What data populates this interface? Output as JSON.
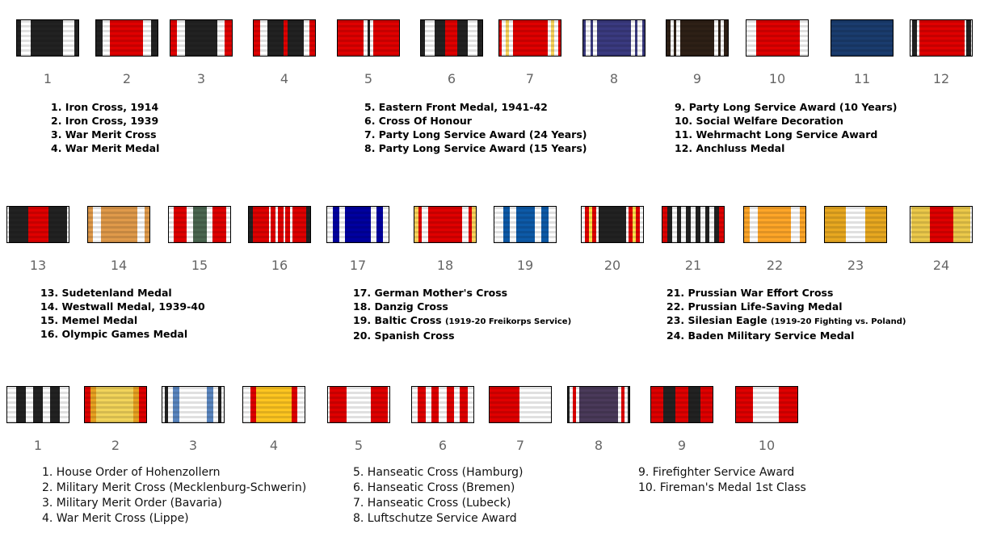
{
  "rows": [
    {
      "ribbons": [
        "1",
        "2",
        "3",
        "4",
        "5",
        "6",
        "7",
        "8",
        "9",
        "10",
        "11",
        "12"
      ],
      "label_groups": [
        [
          {
            "text": "1. Iron Cross, 1914"
          },
          {
            "text": "2. Iron Cross, 1939"
          },
          {
            "text": "3. War Merit Cross"
          },
          {
            "text": "4. War Merit Medal"
          }
        ],
        [
          {
            "text": "5. Eastern Front Medal, 1941-42"
          },
          {
            "text": "6. Cross Of Honour"
          },
          {
            "text": "7. Party Long Service Award (24 Years)"
          },
          {
            "text": "8. Party Long Service Award (15 Years)"
          }
        ],
        [
          {
            "text": "9. Party Long Service Award (10 Years)"
          },
          {
            "text": "10. Social Welfare Decoration"
          },
          {
            "text": "11. Wehrmacht Long Service Award"
          },
          {
            "text": "12. Anchluss Medal"
          }
        ]
      ]
    },
    {
      "ribbons": [
        "13",
        "14",
        "15",
        "16",
        "17",
        "18",
        "19",
        "20",
        "21",
        "22",
        "23",
        "24"
      ],
      "label_groups": [
        [
          {
            "text": "13. Sudetenland Medal"
          },
          {
            "text": "14. Westwall Medal, 1939-40"
          },
          {
            "text": "15. Memel Medal"
          },
          {
            "text": "16. Olympic Games Medal"
          }
        ],
        [
          {
            "text": "17. German Mother's Cross"
          },
          {
            "text": "18. Danzig Cross"
          },
          {
            "text": "19. Baltic Cross ",
            "sub": "(1919-20 Freikorps Service)"
          },
          {
            "text": "20. Spanish Cross"
          }
        ],
        [
          {
            "text": "21. Prussian War Effort Cross"
          },
          {
            "text": "22. Prussian Life-Saving Medal"
          },
          {
            "text": "23. Silesian Eagle ",
            "sub": "(1919-20 Fighting vs. Poland)"
          },
          {
            "text": "24. Baden Military Service Medal"
          }
        ]
      ]
    },
    {
      "ribbons": [
        "1",
        "2",
        "3",
        "4",
        "5",
        "6",
        "7",
        "8",
        "9",
        "10"
      ],
      "label_groups": [
        [
          {
            "text": "1. House Order of Hohenzollern"
          },
          {
            "text": "2. Military Merit Cross (Mecklenburg-Schwerin)"
          },
          {
            "text": "3. Military Merit Order (Bavaria)"
          },
          {
            "text": "4. War Merit Cross (Lippe)"
          }
        ],
        [
          {
            "text": "5. Hanseatic Cross (Hamburg)"
          },
          {
            "text": "6. Hanseatic Cross (Bremen)"
          },
          {
            "text": "7. Hanseatic Cross (Lubeck)"
          },
          {
            "text": "8. Luftschutze Service Award"
          }
        ],
        [
          {
            "text": "9. Firefighter Service Award"
          },
          {
            "text": "10. Fireman's Medal 1st Class"
          }
        ]
      ]
    }
  ],
  "colors": {
    "black": "#222222",
    "white": "#ffffff",
    "red": "#e00000",
    "navy": "#1a3c6e",
    "purple": "#4a3a5a",
    "gold": "#e8a820"
  }
}
